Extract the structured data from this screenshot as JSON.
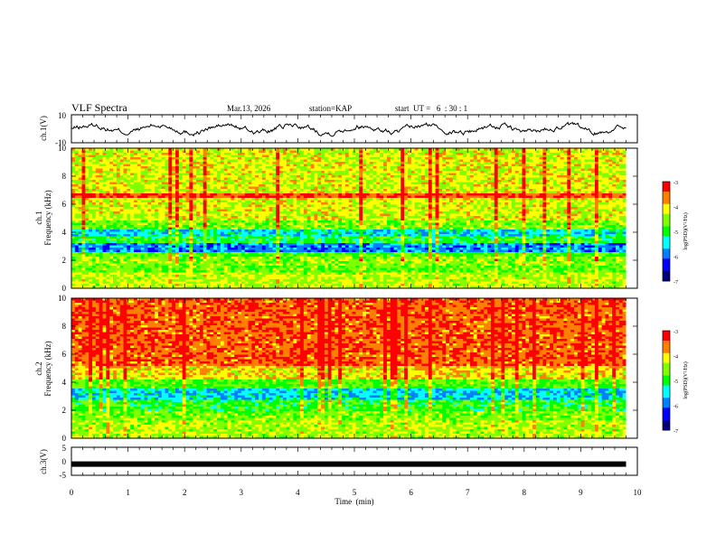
{
  "header": {
    "title": "VLF Spectra",
    "date": "Mar.13, 2026",
    "station": "station=KAP",
    "start": "start  UT =   6  : 30 : 1"
  },
  "colors": {
    "line": "#000000",
    "colormap": [
      "#00007f",
      "#0000ff",
      "#007fff",
      "#00ffff",
      "#00ff00",
      "#7fff00",
      "#ffff00",
      "#ff7f00",
      "#ff0000",
      "#ffffff"
    ]
  },
  "chart_data": [
    {
      "type": "line",
      "id": "ch1-waveform",
      "ylabel": "ch.1(V)",
      "ylim": [
        -10,
        10
      ],
      "yticks": [
        "10",
        "-10"
      ],
      "xlim": [
        0,
        10
      ],
      "note": "waveform trace, values roughly between -5 and 5 V"
    },
    {
      "type": "heatmap",
      "id": "ch1-spectrogram",
      "ylabel_top": "ch.1",
      "ylabel": "Frequency  (kHz)",
      "ylim": [
        0,
        10
      ],
      "yticks": [
        "0",
        "2",
        "4",
        "6",
        "8",
        "10"
      ],
      "xlim": [
        0,
        10
      ],
      "colorbar": {
        "label": "log(PSD)(V²/Hz)",
        "ticks": [
          "-3",
          "-4",
          "-5",
          "-6",
          "-7"
        ],
        "range": [
          -7,
          -3
        ]
      }
    },
    {
      "type": "heatmap",
      "id": "ch2-spectrogram",
      "ylabel_top": "ch.2",
      "ylabel": "Frequency  (kHz)",
      "ylim": [
        0,
        10
      ],
      "yticks": [
        "0",
        "2",
        "4",
        "6",
        "8",
        "10"
      ],
      "xlim": [
        0,
        10
      ],
      "colorbar": {
        "label": "log(PSD)(V²/Hz)",
        "ticks": [
          "-3",
          "-4",
          "-5",
          "-6",
          "-7"
        ],
        "range": [
          -7,
          -3
        ]
      }
    },
    {
      "type": "line",
      "id": "ch3-waveform",
      "ylabel": "ch.3(V)",
      "ylim": [
        -5,
        5
      ],
      "yticks": [
        "5",
        "0",
        "-5"
      ],
      "value": -1,
      "xlim": [
        0,
        10
      ]
    }
  ],
  "xaxis": {
    "label": "Time  (min)",
    "ticks": [
      "0",
      "1",
      "2",
      "3",
      "4",
      "5",
      "6",
      "7",
      "8",
      "9",
      "10"
    ]
  }
}
